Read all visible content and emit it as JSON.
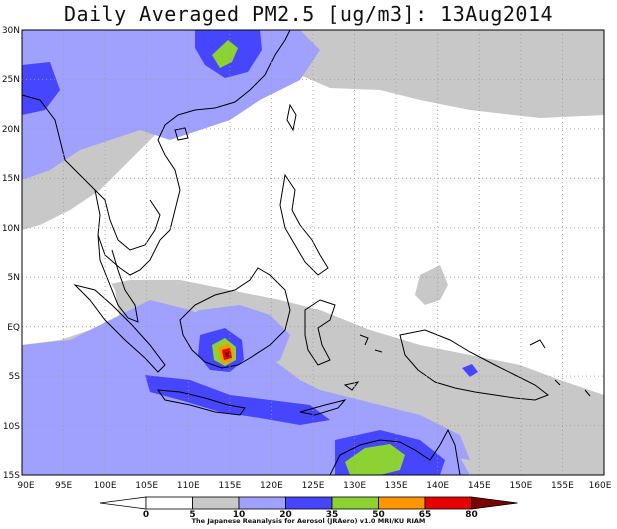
{
  "title": "Daily Averaged PM2.5 [ug/m3]: 13Aug2014",
  "map": {
    "lon_range": [
      90,
      160
    ],
    "lat_range": [
      -15,
      30
    ],
    "lon_ticks": [
      "90E",
      "95E",
      "100E",
      "105E",
      "110E",
      "115E",
      "120E",
      "125E",
      "130E",
      "135E",
      "140E",
      "145E",
      "150E",
      "155E",
      "160E"
    ],
    "lat_ticks": [
      "30N",
      "25N",
      "20N",
      "15N",
      "10N",
      "5N",
      "EQ",
      "5S",
      "10S",
      "15S"
    ],
    "grid": "dotted",
    "colors": {
      "land_coast": "#000000",
      "grid": "#9a9a9a"
    }
  },
  "colorbar": {
    "labels": [
      "0",
      "5",
      "10",
      "20",
      "35",
      "50",
      "65",
      "80"
    ],
    "colors": [
      "#ffffff",
      "#ffffff",
      "#c8c8c8",
      "#a0a0ff",
      "#4646ff",
      "#8cd232",
      "#ff9600",
      "#e60000",
      "#7a0000"
    ]
  },
  "credit": "The Japanese Reanalysis for Aerosol (JRAero) v1.0 MRI/KU RIAM"
}
